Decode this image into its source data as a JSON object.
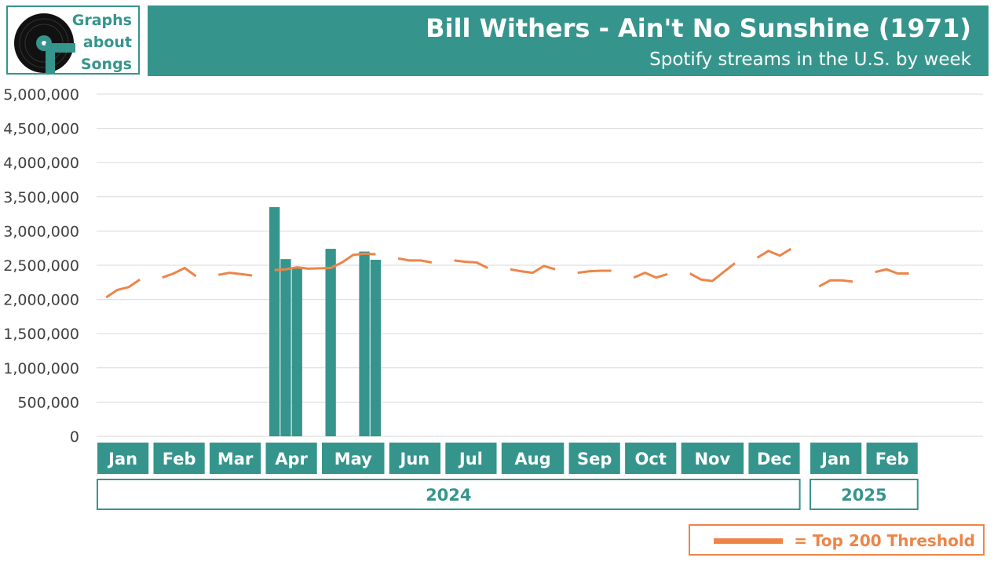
{
  "logo": {
    "line1": "Graphs",
    "line2": "about",
    "line3": "Songs"
  },
  "header": {
    "title": "Bill Withers - Ain't No Sunshine (1971)",
    "subtitle": "Spotify streams in the U.S. by week"
  },
  "legend": {
    "label": "= Top 200 Threshold"
  },
  "colors": {
    "teal": "#35958d",
    "orange": "#ed8548",
    "grid": "#d9d9d9",
    "tick": "#404040"
  },
  "chart_data": {
    "type": "bar",
    "ylim": [
      0,
      5000000
    ],
    "y_ticks": [
      "0",
      "500,000",
      "1,000,000",
      "1,500,000",
      "2,000,000",
      "2,500,000",
      "3,000,000",
      "3,500,000",
      "4,000,000",
      "4,500,000",
      "5,000,000"
    ],
    "months": [
      {
        "label": "Jan",
        "weeks": 4
      },
      {
        "label": "Feb",
        "weeks": 4
      },
      {
        "label": "Mar",
        "weeks": 4
      },
      {
        "label": "Apr",
        "weeks": 4
      },
      {
        "label": "May",
        "weeks": 5
      },
      {
        "label": "Jun",
        "weeks": 4
      },
      {
        "label": "Jul",
        "weeks": 4
      },
      {
        "label": "Aug",
        "weeks": 5
      },
      {
        "label": "Sep",
        "weeks": 4
      },
      {
        "label": "Oct",
        "weeks": 4
      },
      {
        "label": "Nov",
        "weeks": 5
      },
      {
        "label": "Dec",
        "weeks": 4
      },
      {
        "label": "Jan",
        "weeks": 4
      },
      {
        "label": "Feb",
        "weeks": 4
      }
    ],
    "years": [
      {
        "label": "2024",
        "months": 12
      },
      {
        "label": "2025",
        "months": 2
      }
    ],
    "series": [
      {
        "type": "bar",
        "values": [
          null,
          null,
          null,
          null,
          null,
          null,
          null,
          null,
          null,
          null,
          null,
          null,
          3350000,
          2590000,
          2470000,
          null,
          2740000,
          null,
          null,
          2700000,
          2580000,
          null,
          null,
          null,
          null,
          null,
          null,
          null,
          null,
          null,
          null,
          null,
          null,
          null,
          null,
          null,
          null,
          null,
          null,
          null,
          null,
          null,
          null,
          null,
          null,
          null,
          null,
          null,
          null,
          null,
          null,
          null,
          null,
          null,
          null,
          null,
          null,
          null,
          null
        ]
      },
      {
        "type": "line",
        "name": "Top 200 Threshold",
        "values": [
          2030000,
          2140000,
          2180000,
          2290000,
          2320000,
          2380000,
          2460000,
          2340000,
          2360000,
          2390000,
          2370000,
          2350000,
          2430000,
          2440000,
          2470000,
          2450000,
          2460000,
          2540000,
          2650000,
          2670000,
          2660000,
          2600000,
          2570000,
          2570000,
          2540000,
          2570000,
          2550000,
          2540000,
          2460000,
          2440000,
          2410000,
          2390000,
          2490000,
          2440000,
          2390000,
          2410000,
          2420000,
          2420000,
          2320000,
          2390000,
          2320000,
          2370000,
          2380000,
          2290000,
          2270000,
          2400000,
          2530000,
          2610000,
          2710000,
          2640000,
          2740000,
          2190000,
          2280000,
          2280000,
          2260000,
          2400000,
          2440000,
          2380000,
          2380000
        ],
        "gaps_after": [
          3,
          7,
          11,
          20,
          24,
          28,
          33,
          37,
          41,
          46,
          50,
          54
        ]
      }
    ]
  }
}
